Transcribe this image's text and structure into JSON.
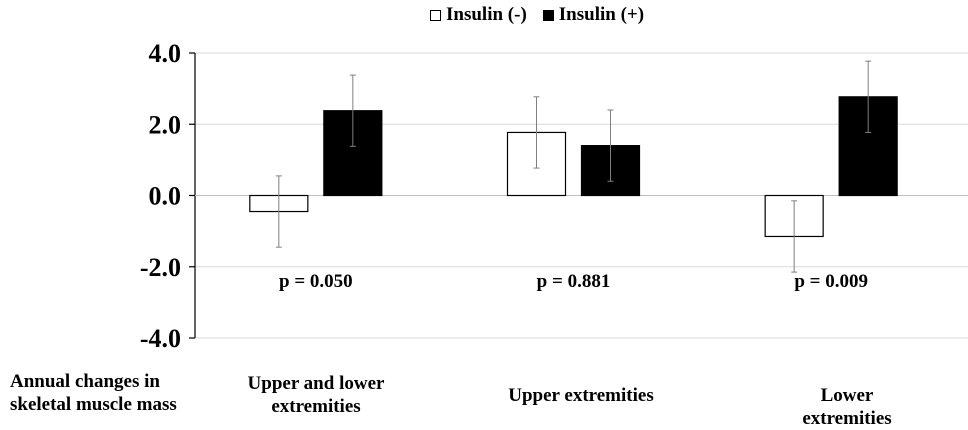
{
  "chart_data": {
    "type": "bar",
    "categories": [
      "Upper and lower\nextremities",
      "Upper extremities",
      "Lower extremities"
    ],
    "series": [
      {
        "name": "Insulin (-)",
        "color": "#ffffff",
        "values": [
          -0.45,
          1.77,
          -1.15
        ],
        "error": [
          1.0,
          1.0,
          1.0
        ]
      },
      {
        "name": "Insulin (+)",
        "color": "#000000",
        "values": [
          2.38,
          1.4,
          2.77
        ],
        "error": [
          1.0,
          1.0,
          1.0
        ]
      }
    ],
    "annotations": [
      "p = 0.050",
      "p = 0.881",
      "p = 0.009"
    ],
    "ylabel": "Annual changes in\nskeletal muscle mass",
    "ylim": [
      -4.0,
      4.0
    ],
    "yticks": [
      "4.0",
      "2.0",
      "0.0",
      "-2.0",
      "-4.0"
    ],
    "ytick_values": [
      4,
      2,
      0,
      -2,
      -4
    ],
    "grid": true,
    "legend_position": "top-center"
  }
}
